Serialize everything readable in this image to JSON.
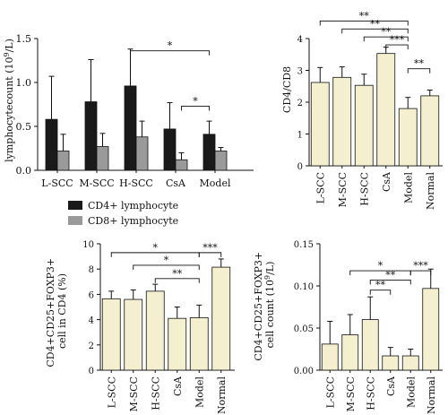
{
  "chart_data": [
    {
      "type": "bar",
      "panel": "top-left",
      "categories": [
        "L-SCC",
        "M-SCC",
        "H-SCC",
        "CsA",
        "Model"
      ],
      "ylabel_prefix": "lymphocytecount (10",
      "ylabel_sup": "9",
      "ylabel_suffix": "/L)",
      "ylim": [
        0,
        1.5
      ],
      "yticks": [
        "0.0",
        "0.5",
        "1.0",
        "1.5"
      ],
      "legend_position": "bottom-left",
      "series": [
        {
          "name": "CD4+ lymphocyte",
          "color": "#1a1a1a",
          "values": [
            0.58,
            0.78,
            0.96,
            0.47,
            0.41
          ],
          "errors": [
            0.49,
            0.48,
            0.42,
            0.3,
            0.15
          ]
        },
        {
          "name": "CD8+ lymphocyte",
          "color": "#9a9a9a",
          "values": [
            0.22,
            0.27,
            0.38,
            0.12,
            0.22
          ],
          "errors": [
            0.19,
            0.15,
            0.18,
            0.08,
            0.04
          ]
        }
      ],
      "significance": [
        {
          "label": "*",
          "from": [
            2,
            0
          ],
          "to": [
            4,
            0
          ],
          "y": 1.36
        },
        {
          "label": "*",
          "from": [
            3,
            1
          ],
          "to": [
            4,
            0
          ],
          "y": 0.73
        }
      ]
    },
    {
      "type": "bar",
      "panel": "top-right",
      "categories": [
        "L-SCC",
        "M-SCC",
        "H-SCC",
        "CsA",
        "Model",
        "Normal"
      ],
      "ylabel": "CD4/CD8",
      "ylim": [
        0,
        4
      ],
      "yticks": [
        "0",
        "1",
        "2",
        "3",
        "4"
      ],
      "series": [
        {
          "color": "#f3efcf",
          "values": [
            2.62,
            2.78,
            2.53,
            3.53,
            1.8,
            2.2
          ],
          "errors": [
            0.47,
            0.33,
            0.35,
            0.2,
            0.35,
            0.18
          ]
        }
      ],
      "significance": [
        {
          "label": "**",
          "from": 0,
          "to": 4,
          "y": 4.55
        },
        {
          "label": "**",
          "from": 1,
          "to": 4,
          "y": 4.3
        },
        {
          "label": "**",
          "from": 2,
          "to": 4,
          "y": 4.05
        },
        {
          "label": "***",
          "from": 3,
          "to": 4,
          "y": 3.8
        },
        {
          "label": "**",
          "from": 4,
          "to": 5,
          "y": 3.05
        }
      ]
    },
    {
      "type": "bar",
      "panel": "bottom-left",
      "categories": [
        "L-SCC",
        "M-SCC",
        "H-SCC",
        "CsA",
        "Model",
        "Normal"
      ],
      "ylabel": "CD4+CD25+FOXP3+",
      "ylabel2": "cell in CD4 (%)",
      "ylim": [
        0,
        10
      ],
      "yticks": [
        "0",
        "2",
        "4",
        "6",
        "8",
        "10"
      ],
      "series": [
        {
          "color": "#f3efcf",
          "values": [
            5.65,
            5.6,
            6.25,
            4.1,
            4.15,
            8.15
          ],
          "errors": [
            0.6,
            0.75,
            0.55,
            0.9,
            1.0,
            0.65
          ]
        }
      ],
      "significance": [
        {
          "label": "*",
          "from": 0,
          "to": 4,
          "y": 9.3
        },
        {
          "label": "*",
          "from": 1,
          "to": 4,
          "y": 8.3
        },
        {
          "label": "**",
          "from": 2,
          "to": 4,
          "y": 7.25
        },
        {
          "label": "***",
          "from": 4,
          "to": 5,
          "y": 9.3
        }
      ]
    },
    {
      "type": "bar",
      "panel": "bottom-right",
      "categories": [
        "L-SCC",
        "M-SCC",
        "H-SCC",
        "CsA",
        "Model",
        "Normal"
      ],
      "ylabel": "CD4+CD25+FOXP3+",
      "ylabel2_prefix": "cell count (10",
      "ylabel2_sup": "9",
      "ylabel2_suffix": "/L)",
      "ylim": [
        0,
        0.15
      ],
      "yticks": [
        "0.00",
        "0.05",
        "0.10",
        "0.15"
      ],
      "series": [
        {
          "color": "#f3efcf",
          "values": [
            0.031,
            0.042,
            0.06,
            0.017,
            0.017,
            0.097
          ],
          "errors": [
            0.027,
            0.024,
            0.027,
            0.01,
            0.008,
            0.023
          ]
        }
      ],
      "significance": [
        {
          "label": "*",
          "from": 1,
          "to": 4,
          "y": 0.118
        },
        {
          "label": "**",
          "from": 2,
          "to": 4,
          "y": 0.107
        },
        {
          "label": "**",
          "from": 2,
          "to": 3,
          "y": 0.095
        },
        {
          "label": "***",
          "from": 4,
          "to": 5,
          "y": 0.118
        }
      ]
    }
  ]
}
